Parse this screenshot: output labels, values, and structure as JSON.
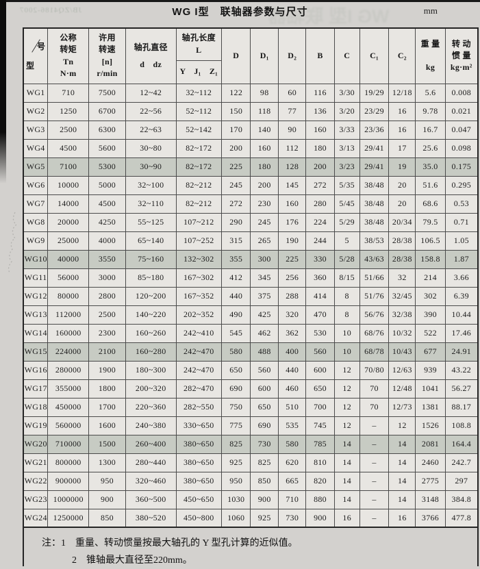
{
  "page": {
    "title": "WG I型　联轴器参数与尺寸",
    "unit": "mm"
  },
  "artifacts": {
    "back_code": "JB/ZQ4186-2007",
    "back_title": "WG I型 联轴器"
  },
  "table": {
    "header": {
      "model_left": "型",
      "model_right": "号",
      "torque": "公称\n转矩\nTn\nN·m",
      "speed": "许用\n转速\n[n]\nr/min",
      "bore": "轴孔直径\nd　dz",
      "length_top": "轴孔长度\nL",
      "length_sub": "Y　J₁　Z₁",
      "D": "D",
      "D1": "D₁",
      "D2": "D₂",
      "B": "B",
      "C": "C",
      "C1": "C₁",
      "C2": "C₂",
      "weight": "重 量\n\nkg",
      "inertia": "转 动\n惯 量\nkg·m²"
    },
    "columns": [
      "型号",
      "公称转矩 Tn N·m",
      "许用转速 [n] r/min",
      "轴孔直径 d dz",
      "轴孔长度 L (Y J₁ Z₁)",
      "D",
      "D₁",
      "D₂",
      "B",
      "C",
      "C₁",
      "C₂",
      "重量 kg",
      "转动惯量 kg·m²"
    ],
    "shaded_models": [
      "WG5",
      "WG10",
      "WG15",
      "WG20"
    ],
    "rows": [
      [
        "WG1",
        "710",
        "7500",
        "12~42",
        "32~112",
        "122",
        "98",
        "60",
        "116",
        "3/30",
        "19/29",
        "12/18",
        "5.6",
        "0.008"
      ],
      [
        "WG2",
        "1250",
        "6700",
        "22~56",
        "52~112",
        "150",
        "118",
        "77",
        "136",
        "3/20",
        "23/29",
        "16",
        "9.78",
        "0.021"
      ],
      [
        "WG3",
        "2500",
        "6300",
        "22~63",
        "52~142",
        "170",
        "140",
        "90",
        "160",
        "3/33",
        "23/36",
        "16",
        "16.7",
        "0.047"
      ],
      [
        "WG4",
        "4500",
        "5600",
        "30~80",
        "82~172",
        "200",
        "160",
        "112",
        "180",
        "3/13",
        "29/41",
        "17",
        "25.6",
        "0.098"
      ],
      [
        "WG5",
        "7100",
        "5300",
        "30~90",
        "82~172",
        "225",
        "180",
        "128",
        "200",
        "3/23",
        "29/41",
        "19",
        "35.0",
        "0.175"
      ],
      [
        "WG6",
        "10000",
        "5000",
        "32~100",
        "82~212",
        "245",
        "200",
        "145",
        "272",
        "5/35",
        "38/48",
        "20",
        "51.6",
        "0.295"
      ],
      [
        "WG7",
        "14000",
        "4500",
        "32~110",
        "82~212",
        "272",
        "230",
        "160",
        "280",
        "5/45",
        "38/48",
        "20",
        "68.6",
        "0.53"
      ],
      [
        "WG8",
        "20000",
        "4250",
        "55~125",
        "107~212",
        "290",
        "245",
        "176",
        "224",
        "5/29",
        "38/48",
        "20/34",
        "79.5",
        "0.71"
      ],
      [
        "WG9",
        "25000",
        "4000",
        "65~140",
        "107~252",
        "315",
        "265",
        "190",
        "244",
        "5",
        "38/53",
        "28/38",
        "106.5",
        "1.05"
      ],
      [
        "WG10",
        "40000",
        "3550",
        "75~160",
        "132~302",
        "355",
        "300",
        "225",
        "330",
        "5/28",
        "43/63",
        "28/38",
        "158.8",
        "1.87"
      ],
      [
        "WG11",
        "56000",
        "3000",
        "85~180",
        "167~302",
        "412",
        "345",
        "256",
        "360",
        "8/15",
        "51/66",
        "32",
        "214",
        "3.66"
      ],
      [
        "WG12",
        "80000",
        "2800",
        "120~200",
        "167~352",
        "440",
        "375",
        "288",
        "414",
        "8",
        "51/76",
        "32/45",
        "302",
        "6.39"
      ],
      [
        "WG13",
        "112000",
        "2500",
        "140~220",
        "202~352",
        "490",
        "425",
        "320",
        "470",
        "8",
        "56/76",
        "32/38",
        "390",
        "10.44"
      ],
      [
        "WG14",
        "160000",
        "2300",
        "160~260",
        "242~410",
        "545",
        "462",
        "362",
        "530",
        "10",
        "68/76",
        "10/32",
        "522",
        "17.46"
      ],
      [
        "WG15",
        "224000",
        "2100",
        "160~280",
        "242~470",
        "580",
        "488",
        "400",
        "560",
        "10",
        "68/78",
        "10/43",
        "677",
        "24.91"
      ],
      [
        "WG16",
        "280000",
        "1900",
        "180~300",
        "242~470",
        "650",
        "560",
        "440",
        "600",
        "12",
        "70/80",
        "12/63",
        "939",
        "43.22"
      ],
      [
        "WG17",
        "355000",
        "1800",
        "200~320",
        "282~470",
        "690",
        "600",
        "460",
        "650",
        "12",
        "70",
        "12/48",
        "1041",
        "56.27"
      ],
      [
        "WG18",
        "450000",
        "1700",
        "220~360",
        "282~550",
        "750",
        "650",
        "510",
        "700",
        "12",
        "70",
        "12/73",
        "1381",
        "88.17"
      ],
      [
        "WG19",
        "560000",
        "1600",
        "240~380",
        "330~650",
        "775",
        "690",
        "535",
        "745",
        "12",
        "–",
        "12",
        "1526",
        "108.8"
      ],
      [
        "WG20",
        "710000",
        "1500",
        "260~400",
        "380~650",
        "825",
        "730",
        "580",
        "785",
        "14",
        "–",
        "14",
        "2081",
        "164.4"
      ],
      [
        "WG21",
        "800000",
        "1300",
        "280~440",
        "380~650",
        "925",
        "825",
        "620",
        "810",
        "14",
        "–",
        "14",
        "2460",
        "242.7"
      ],
      [
        "WG22",
        "900000",
        "950",
        "320~460",
        "380~650",
        "950",
        "850",
        "665",
        "820",
        "14",
        "–",
        "14",
        "2775",
        "297"
      ],
      [
        "WG23",
        "1000000",
        "900",
        "360~500",
        "450~650",
        "1030",
        "900",
        "710",
        "880",
        "14",
        "–",
        "14",
        "3148",
        "384.8"
      ],
      [
        "WG24",
        "1250000",
        "850",
        "380~520",
        "450~800",
        "1060",
        "925",
        "730",
        "900",
        "16",
        "–",
        "16",
        "3766",
        "477.8"
      ]
    ]
  },
  "notes": {
    "label": "注：",
    "items": [
      "1　重量、转动惯量按最大轴孔的 Y 型孔计算的近似值。",
      "2　锥轴最大直径至220mm。"
    ]
  }
}
